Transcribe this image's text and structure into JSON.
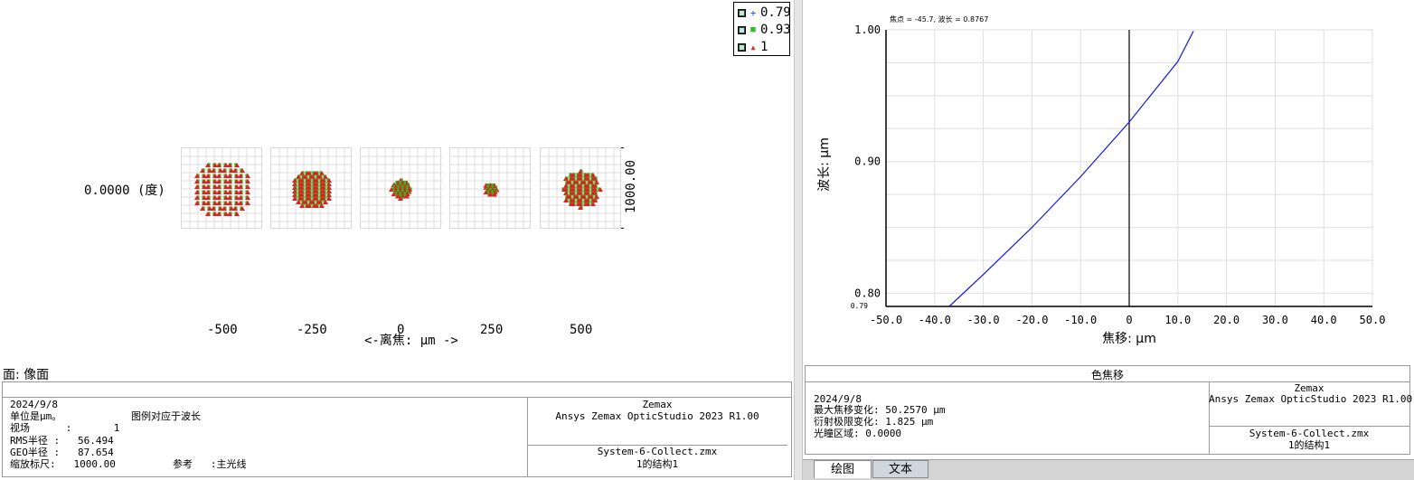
{
  "spot": {
    "legend": [
      {
        "label": "0.79",
        "marker": "+",
        "color": "#1f4fbf",
        "icon": "plus-marker-icon"
      },
      {
        "label": "0.93",
        "marker": "■",
        "color": "#22c322",
        "icon": "square-marker-icon"
      },
      {
        "label": "1",
        "marker": "▲",
        "color": "#e02020",
        "icon": "triangle-marker-icon"
      }
    ],
    "field_label": "0.0000 (度)",
    "scale_label": "1000.00",
    "focus_ticks": [
      "-500",
      "-250",
      "0",
      "250",
      "500"
    ],
    "focus_axis_label": "<-离焦: μm ->",
    "surface_label": "面: 像面",
    "info": {
      "date": "2024/9/8",
      "unit_line": "单位是μm。",
      "legend_note": "图例对应于波长",
      "field_line": "视场      :       1",
      "rms_line": "RMS半径 :   56.494",
      "geo_line": "GEO半径 :   87.654",
      "scale_line": "缩放标尺:   1000.00",
      "ref_line": "参考   :主光线",
      "company": "Zemax",
      "product": "Ansys Zemax OpticStudio 2023 R1.00",
      "file": "System-6-Collect.zmx",
      "config": "1的结构1"
    }
  },
  "shift": {
    "top_label": "焦点 = -45.7, 波长 = 0.8767",
    "title": "色焦移",
    "info": {
      "date": "2024/9/8",
      "max_shift": "最大焦移变化: 50.2570 μm",
      "diff_limit": "衍射极限变化: 1.825 μm",
      "pupil": "光瞳区域: 0.0000",
      "company": "Zemax",
      "product": "Ansys Zemax OpticStudio 2023 R1.00",
      "file": "System-6-Collect.zmx",
      "config": "1的结构1"
    },
    "tabs": [
      "绘图",
      "文本"
    ]
  },
  "chart_data": [
    {
      "type": "scatter",
      "title": "",
      "xlabel": "<-离焦: μm ->",
      "ylabel": "",
      "categories": [
        "-500",
        "-250",
        "0",
        "250",
        "500"
      ],
      "series": [
        {
          "name": "0.79",
          "marker": "+",
          "color": "#1f4fbf"
        },
        {
          "name": "0.93",
          "marker": "square",
          "color": "#22c322"
        },
        {
          "name": "1",
          "marker": "triangle",
          "color": "#e02020"
        }
      ],
      "spot_scale_um": 1000.0,
      "field": "0.0000 (度)"
    },
    {
      "type": "line",
      "title": "焦点 = -45.7, 波长 = 0.8767",
      "xlabel": "焦移: μm",
      "ylabel": "波长: μm",
      "xlim": [
        -50,
        50
      ],
      "ylim": [
        0.79,
        1.0
      ],
      "xticks": [
        "-50.0",
        "-40.0",
        "-30.0",
        "-20.0",
        "-10.0",
        "0",
        "10.0",
        "20.0",
        "30.0",
        "40.0",
        "50.0"
      ],
      "yticks": [
        "0.79",
        "0.80",
        "0.90",
        "1.00"
      ],
      "grid": true,
      "series": [
        {
          "name": "",
          "color": "#1414e6",
          "x": [
            -37.0,
            -30.0,
            -20.0,
            -10.0,
            0.0,
            5.0,
            10.0,
            13.2
          ],
          "y": [
            0.79,
            0.8142,
            0.85,
            0.8885,
            0.93,
            0.953,
            0.976,
            0.999
          ]
        }
      ]
    }
  ]
}
